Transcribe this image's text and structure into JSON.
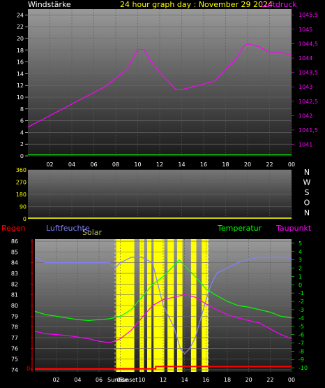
{
  "header": {
    "left": "Windstärke",
    "center": "24 hour graph day : November 29 2024",
    "right": "Luftdruck"
  },
  "colors": {
    "windspeed": "#00ff00",
    "pressure": "#ff00ff",
    "direction": "#ffff00",
    "rain": "#ff0000",
    "humidity": "#8080ff",
    "solar": "#ffff00",
    "temperature": "#00ff00",
    "dewpoint": "#ff00ff",
    "header_text": "#ffff00",
    "axis_text": "#ffffff",
    "right_axis_pressure": "#ff00ff"
  },
  "time_ticks": [
    "02",
    "04",
    "06",
    "08",
    "10",
    "12",
    "14",
    "16",
    "18",
    "20",
    "22",
    "00"
  ],
  "panel_bottom": {
    "legend_rain": "Regen",
    "legend_humidity": "Luftfeuchte",
    "legend_solar": "Solar",
    "legend_temperature": "Temperatur",
    "legend_dewpoint": "Taupunkt",
    "sunrise_label": "Sunrise",
    "sunset_label": "Sunset"
  },
  "compass": [
    "N",
    "W",
    "S",
    "O",
    "N"
  ],
  "chart_data": [
    {
      "type": "line",
      "x_unit": "hour",
      "xlim": [
        0,
        24
      ],
      "left_axis": {
        "ticks": [
          0,
          2,
          4,
          6,
          8,
          10,
          12,
          14,
          16,
          18,
          20,
          22,
          24
        ],
        "ylim": [
          0,
          25
        ]
      },
      "right_axis": {
        "ticks": [
          "1041",
          "1041,5",
          "1042",
          "1042,5",
          "1043",
          "1043,5",
          "1044",
          "1044,5",
          "1045",
          "1045,5"
        ],
        "ylim": [
          1040.6,
          1045.7
        ]
      },
      "series": [
        {
          "key": "pressure",
          "axis": "right",
          "x": [
            0,
            1,
            2,
            3,
            4,
            5,
            6,
            7,
            8,
            9,
            9.7,
            10,
            10.6,
            11,
            12,
            13,
            13.5,
            14,
            15,
            16,
            17,
            18,
            19,
            19.6,
            20,
            21,
            22,
            23,
            24
          ],
          "y": [
            1041.6,
            1041.8,
            1042.0,
            1042.2,
            1042.4,
            1042.6,
            1042.8,
            1043.0,
            1043.3,
            1043.6,
            1044.1,
            1044.3,
            1044.3,
            1044.0,
            1043.5,
            1043.1,
            1042.9,
            1042.9,
            1043.0,
            1043.1,
            1043.2,
            1043.6,
            1044.0,
            1044.4,
            1044.5,
            1044.4,
            1044.2,
            1044.2,
            1044.1
          ]
        },
        {
          "key": "windspeed",
          "axis": "left",
          "x": [
            0,
            24
          ],
          "y": [
            0.2,
            0.2
          ]
        }
      ]
    },
    {
      "type": "line",
      "x_unit": "hour",
      "xlim": [
        0,
        24
      ],
      "left_axis": {
        "ticks": [
          0,
          90,
          180,
          270,
          360
        ],
        "ylim": [
          0,
          360
        ]
      },
      "series": [
        {
          "key": "direction",
          "axis": "left",
          "x": [
            0,
            24
          ],
          "y": [
            0,
            0
          ]
        }
      ]
    },
    {
      "type": "line",
      "x_unit": "hour",
      "xlim": [
        0,
        24
      ],
      "left_rain_ticks": [
        "0-"
      ],
      "left_axis": {
        "ticks": [
          74,
          75,
          76,
          77,
          78,
          79,
          80,
          81,
          82,
          83,
          84,
          85,
          86
        ],
        "ylim": [
          73.8,
          86.2
        ]
      },
      "right_axis": {
        "ticks": [
          -10,
          -9,
          -8,
          -7,
          -6,
          -5,
          -4,
          -3,
          -2,
          -1,
          0,
          1,
          2,
          3,
          4,
          5
        ],
        "ylim": [
          -10.5,
          5.5
        ]
      },
      "series": [
        {
          "key": "humidity",
          "axis": "left",
          "x": [
            0,
            1,
            2,
            3,
            4,
            5,
            6,
            7,
            7.5,
            8,
            9,
            10,
            11,
            12,
            13,
            13.6,
            14,
            14.5,
            15,
            16,
            16.5,
            17,
            18,
            19,
            20,
            21,
            22,
            23,
            24
          ],
          "y": [
            84.5,
            84,
            84,
            84,
            84,
            84,
            84,
            84,
            83.5,
            84,
            84.5,
            84.5,
            84,
            80,
            78,
            76,
            75.5,
            76,
            77,
            80.5,
            82,
            83,
            83.5,
            84,
            84.3,
            84.5,
            84.5,
            84.5,
            84.4
          ]
        },
        {
          "key": "temperature",
          "axis": "right",
          "x": [
            0,
            1,
            2,
            3,
            4,
            5,
            6,
            7,
            8,
            9,
            10,
            11,
            12,
            13,
            13.5,
            14,
            15,
            16,
            17,
            18,
            19,
            20,
            21,
            22,
            23,
            24
          ],
          "y": [
            -3.2,
            -3.6,
            -3.8,
            -4.0,
            -4.2,
            -4.3,
            -4.2,
            -4.1,
            -3.8,
            -3.0,
            -1.5,
            0.0,
            1.0,
            2.3,
            3.0,
            2.3,
            1.0,
            -0.5,
            -1.3,
            -2.0,
            -2.5,
            -2.7,
            -3.0,
            -3.3,
            -3.8,
            -4.0
          ]
        },
        {
          "key": "dewpoint",
          "axis": "right",
          "x": [
            0,
            1,
            2,
            3,
            4,
            5,
            6,
            7,
            8,
            9,
            10,
            11,
            12,
            13,
            14,
            15,
            16,
            17,
            18,
            19,
            20,
            21,
            22,
            23,
            24
          ],
          "y": [
            -5.6,
            -5.9,
            -6.0,
            -6.1,
            -6.3,
            -6.5,
            -6.8,
            -7.0,
            -6.5,
            -5.5,
            -4.0,
            -2.5,
            -1.8,
            -1.5,
            -1.2,
            -1.5,
            -2.3,
            -3.0,
            -3.6,
            -4.0,
            -4.3,
            -4.6,
            -5.3,
            -6.0,
            -6.5
          ]
        },
        {
          "key": "rain",
          "axis": "left",
          "x": [
            0,
            11.3,
            11.3,
            24
          ],
          "y": [
            74.1,
            74.1,
            74.3,
            74.3
          ]
        }
      ],
      "solar_windows": [
        [
          7.6,
          9.3
        ],
        [
          9.8,
          10.2
        ],
        [
          10.5,
          10.9
        ],
        [
          11.1,
          12.1
        ],
        [
          12.4,
          13.0
        ],
        [
          13.3,
          13.8
        ],
        [
          14.6,
          15.1
        ],
        [
          15.6,
          16.2
        ]
      ],
      "sunrise_hour": 7.5,
      "sunset_hour": 16.2
    }
  ]
}
